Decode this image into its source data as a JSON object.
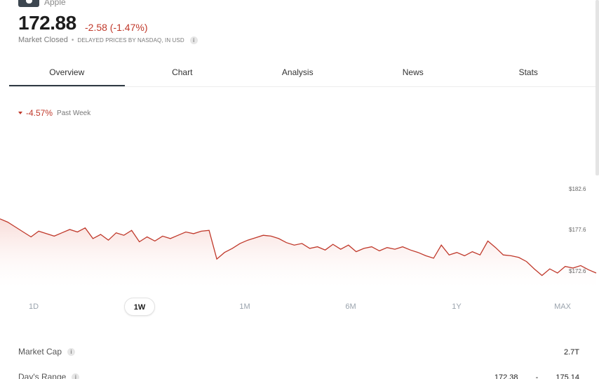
{
  "header": {
    "company": "Apple",
    "price": "172.88",
    "change": "-2.58 (-1.47%)",
    "market_status": "Market Closed",
    "delay_note": "DELAYED PRICES BY NASDAQ, IN USD",
    "icons": {
      "logo": "apple-logo-icon",
      "info": "info-icon"
    }
  },
  "tabs": [
    {
      "label": "Overview",
      "active": true
    },
    {
      "label": "Chart",
      "active": false
    },
    {
      "label": "Analysis",
      "active": false
    },
    {
      "label": "News",
      "active": false
    },
    {
      "label": "Stats",
      "active": false
    }
  ],
  "performance": {
    "percent": "-4.57%",
    "period": "Past Week",
    "direction_icon": "triangle-down-icon"
  },
  "chart_data": {
    "type": "area",
    "y_axis_labels": [
      "$182.6",
      "$177.6",
      "$172.6"
    ],
    "y_ticks": [
      182.6,
      177.6,
      172.6
    ],
    "ylim": [
      170.6,
      186.0
    ],
    "line_color": "#c0392b",
    "fill_color": "#fbe6e4",
    "grid": false,
    "values": [
      179.0,
      178.6,
      178.0,
      177.4,
      176.8,
      177.5,
      177.2,
      176.9,
      177.3,
      177.7,
      177.4,
      177.9,
      176.6,
      177.1,
      176.4,
      177.3,
      177.0,
      177.6,
      176.2,
      176.8,
      176.3,
      176.9,
      176.6,
      177.0,
      177.4,
      177.2,
      177.5,
      177.6,
      174.1,
      174.9,
      175.4,
      176.0,
      176.4,
      176.7,
      177.0,
      176.9,
      176.6,
      176.1,
      175.8,
      176.0,
      175.4,
      175.6,
      175.2,
      175.9,
      175.3,
      175.8,
      175.0,
      175.4,
      175.6,
      175.1,
      175.5,
      175.3,
      175.6,
      175.2,
      174.9,
      174.5,
      174.2,
      175.8,
      174.6,
      174.9,
      174.5,
      175.0,
      174.6,
      176.3,
      175.5,
      174.6,
      174.5,
      174.3,
      173.8,
      172.9,
      172.1,
      172.9,
      172.4,
      173.2,
      173.0,
      173.3,
      172.8,
      172.4
    ]
  },
  "ranges": [
    {
      "label": "1D",
      "active": false
    },
    {
      "label": "1W",
      "active": true
    },
    {
      "label": "1M",
      "active": false
    },
    {
      "label": "6M",
      "active": false
    },
    {
      "label": "1Y",
      "active": false
    },
    {
      "label": "MAX",
      "active": false
    }
  ],
  "stats": {
    "market_cap": {
      "label": "Market Cap",
      "value": "2.7T"
    },
    "days_range": {
      "label": "Day's Range",
      "low": "172.38",
      "separator": "-",
      "high": "175.14"
    }
  }
}
